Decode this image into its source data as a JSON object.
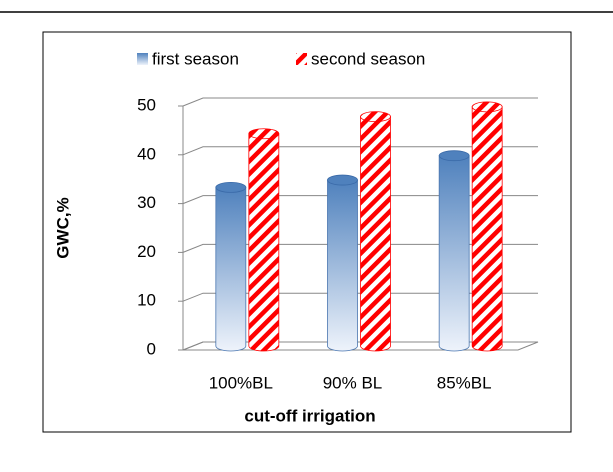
{
  "chart_data": {
    "type": "bar",
    "x_label": "cut-off irrigation",
    "y_label": "GWC,%",
    "categories": [
      "100%BL",
      "90% BL",
      "85%BL"
    ],
    "series": [
      {
        "name": "first season",
        "color": "#4f81bd",
        "values": [
          32.5,
          34,
          39
        ]
      },
      {
        "name": "second season",
        "color": "#ff0000",
        "values": [
          43.5,
          47,
          49
        ]
      }
    ],
    "ylim": [
      0,
      50
    ],
    "yticks": [
      0,
      10,
      20,
      30,
      40,
      50
    ],
    "grid": true
  }
}
